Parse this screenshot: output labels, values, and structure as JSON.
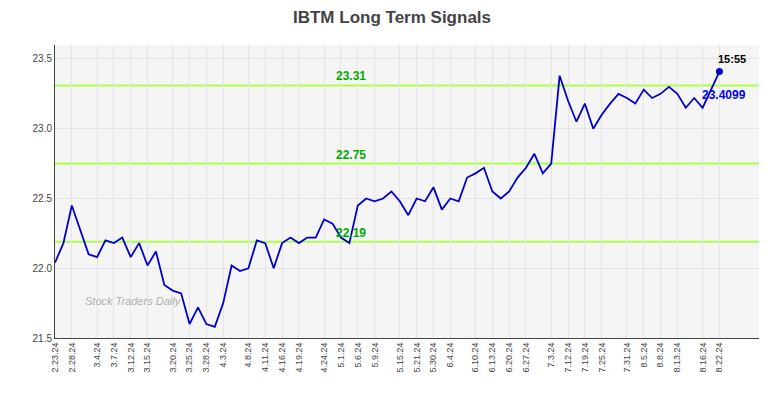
{
  "chart_data": {
    "type": "line",
    "title": "IBTM Long Term Signals",
    "categories": [
      "2.23.24",
      null,
      "2.28.24",
      null,
      null,
      "3.4.24",
      null,
      "3.7.24",
      null,
      "3.12.24",
      null,
      "3.15.24",
      null,
      null,
      "3.20.24",
      null,
      "3.25.24",
      null,
      "3.28.24",
      null,
      "4.3.24",
      null,
      null,
      "4.8.24",
      null,
      "4.11.24",
      null,
      "4.16.24",
      null,
      "4.19.24",
      null,
      null,
      "4.24.24",
      null,
      "5.1.24",
      null,
      "5.6.24",
      null,
      "5.9.24",
      null,
      null,
      "5.15.24",
      null,
      "5.21.24",
      null,
      "5.30.24",
      null,
      "6.4.24",
      null,
      null,
      "6.10.24",
      null,
      "6.13.24",
      null,
      "6.20.24",
      null,
      "6.27.24",
      null,
      null,
      "7.3.24",
      null,
      "7.12.24",
      null,
      "7.19.24",
      null,
      "7.25.24",
      null,
      null,
      "7.31.24",
      null,
      "8.5.24",
      null,
      "8.8.24",
      null,
      "8.13.24",
      null,
      null,
      "8.16.24",
      null,
      "8.22.24"
    ],
    "values": [
      22.04,
      22.18,
      22.45,
      22.28,
      22.1,
      22.08,
      22.2,
      22.18,
      22.22,
      22.08,
      22.18,
      22.02,
      22.12,
      21.88,
      21.84,
      21.82,
      21.6,
      21.72,
      21.6,
      21.58,
      21.75,
      22.02,
      21.98,
      22.0,
      22.2,
      22.18,
      22.0,
      22.18,
      22.22,
      22.18,
      22.22,
      22.22,
      22.35,
      22.32,
      22.22,
      22.18,
      22.45,
      22.5,
      22.48,
      22.5,
      22.55,
      22.48,
      22.38,
      22.5,
      22.48,
      22.58,
      22.42,
      22.5,
      22.48,
      22.65,
      22.68,
      22.72,
      22.55,
      22.5,
      22.55,
      22.65,
      22.72,
      22.82,
      22.68,
      22.75,
      23.38,
      23.2,
      23.05,
      23.18,
      23.0,
      23.1,
      23.18,
      23.25,
      23.22,
      23.18,
      23.28,
      23.22,
      23.25,
      23.3,
      23.25,
      23.15,
      23.22,
      23.15,
      23.28,
      23.41
    ],
    "color": "#0000cc",
    "ylim": [
      21.5,
      23.6
    ],
    "yticks": [
      21.5,
      {
        "value": 22.0,
        "label": "22.0"
      },
      22.5,
      {
        "value": 23.0,
        "label": "23.0"
      },
      23.5
    ],
    "grid": true,
    "hlines": [
      {
        "value": 22.19,
        "label": "22.19"
      },
      {
        "value": 22.75,
        "label": "22.75"
      },
      {
        "value": 23.31,
        "label": "23.31"
      }
    ],
    "hline_color": "#aaff44",
    "hline_label_color": "#00aa00",
    "watermark": {
      "text": "Stock Traders Daily",
      "color": "#b0b0b0"
    },
    "last_time": {
      "text": "15:55",
      "color": "#000000"
    },
    "last_price": {
      "text": "23.4099",
      "color": "#0000ff"
    }
  }
}
